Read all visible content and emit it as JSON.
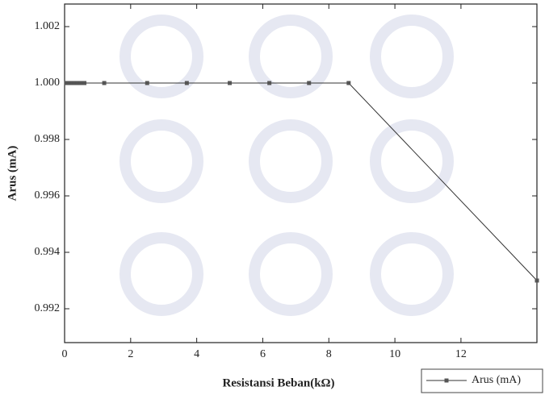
{
  "chart_data": {
    "type": "line",
    "x_label": "Resistansi Beban(kΩ)",
    "y_label": "Arus (mA)",
    "x": [
      0.05,
      0.1,
      0.15,
      0.2,
      0.25,
      0.3,
      0.4,
      0.5,
      0.6,
      1.2,
      2.5,
      3.7,
      5.0,
      6.2,
      7.4,
      8.6,
      14.3
    ],
    "series": [
      {
        "name": "Arus (mA)",
        "color": "#333333",
        "values": [
          1.0,
          1.0,
          1.0,
          1.0,
          1.0,
          1.0,
          1.0,
          1.0,
          1.0,
          1.0,
          1.0,
          1.0,
          1.0,
          1.0,
          1.0,
          1.0,
          0.993
        ]
      }
    ],
    "xlim": [
      0,
      14.3
    ],
    "xticks": [
      0,
      2,
      4,
      6,
      8,
      10,
      12
    ],
    "ylim": [
      0.9908,
      1.0028
    ],
    "yticks": [
      0.992,
      0.994,
      0.996,
      0.998,
      {
        "value": 1,
        "label": "1.000"
      },
      1.002
    ],
    "legend": "bottom-right"
  }
}
